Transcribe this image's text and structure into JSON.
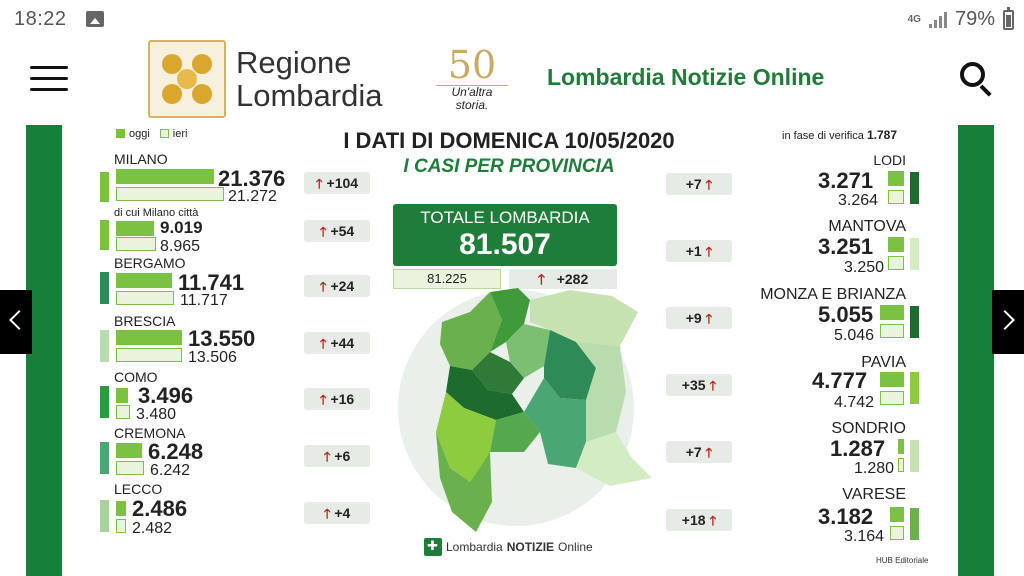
{
  "status": {
    "time": "18:22",
    "network": "4G",
    "battery": "79%"
  },
  "header": {
    "logo_title": [
      "Regione",
      "Lombardia"
    ],
    "anniversary": {
      "number": "50",
      "text": [
        "Un'altra",
        "storia."
      ]
    },
    "site_title": "Lombardia Notizie Online"
  },
  "infographic": {
    "legend": {
      "oggi": "oggi",
      "ieri": "ieri"
    },
    "title": "I DATI DI DOMENICA 10/05/2020",
    "subtitle": "I CASI PER PROVINCIA",
    "verifica_label": "in fase di verifica",
    "verifica_value": "1.787",
    "total": {
      "label": "TOTALE LOMBARDIA",
      "value": "81.507",
      "ieri": "81.225",
      "delta": "+282",
      "arrow": "🡑"
    },
    "left": [
      {
        "name": "MILANO",
        "oggi": "21.376",
        "ieri": "21.272",
        "delta": "+104"
      },
      {
        "name": "di cui Milano città",
        "oggi": "9.019",
        "ieri": "8.965",
        "delta": "+54"
      },
      {
        "name": "BERGAMO",
        "oggi": "11.741",
        "ieri": "11.717",
        "delta": "+24"
      },
      {
        "name": "BRESCIA",
        "oggi": "13.550",
        "ieri": "13.506",
        "delta": "+44"
      },
      {
        "name": "COMO",
        "oggi": "3.496",
        "ieri": "3.480",
        "delta": "+16"
      },
      {
        "name": "CREMONA",
        "oggi": "6.248",
        "ieri": "6.242",
        "delta": "+6"
      },
      {
        "name": "LECCO",
        "oggi": "2.486",
        "ieri": "2.482",
        "delta": "+4"
      }
    ],
    "right": [
      {
        "name": "LODI",
        "oggi": "3.271",
        "ieri": "3.264",
        "delta": "+7"
      },
      {
        "name": "MANTOVA",
        "oggi": "3.251",
        "ieri": "3.250",
        "delta": "+1"
      },
      {
        "name": "MONZA E BRIANZA",
        "oggi": "5.055",
        "ieri": "5.046",
        "delta": "+9"
      },
      {
        "name": "PAVIA",
        "oggi": "4.777",
        "ieri": "4.742",
        "delta": "+35"
      },
      {
        "name": "SONDRIO",
        "oggi": "1.287",
        "ieri": "1.280",
        "delta": "+7"
      },
      {
        "name": "VARESE",
        "oggi": "3.182",
        "ieri": "3.164",
        "delta": "+18"
      }
    ],
    "footer": {
      "brand": "Lombardia",
      "brand_bold": "NOTIZIE",
      "brand_tail": "Online",
      "credit": "HUB Editoriale"
    },
    "arrow_glyph": "🡑"
  },
  "colors": {
    "brand_green": "#1f7d3a",
    "oggi_bar": "#7cc242",
    "ieri_bar": "#eaf4dc",
    "up_arrow": "#b8261e"
  },
  "icons": {
    "menu": "hamburger-icon",
    "search": "search-icon",
    "prev": "chevron-left-icon",
    "next": "chevron-right-icon"
  }
}
